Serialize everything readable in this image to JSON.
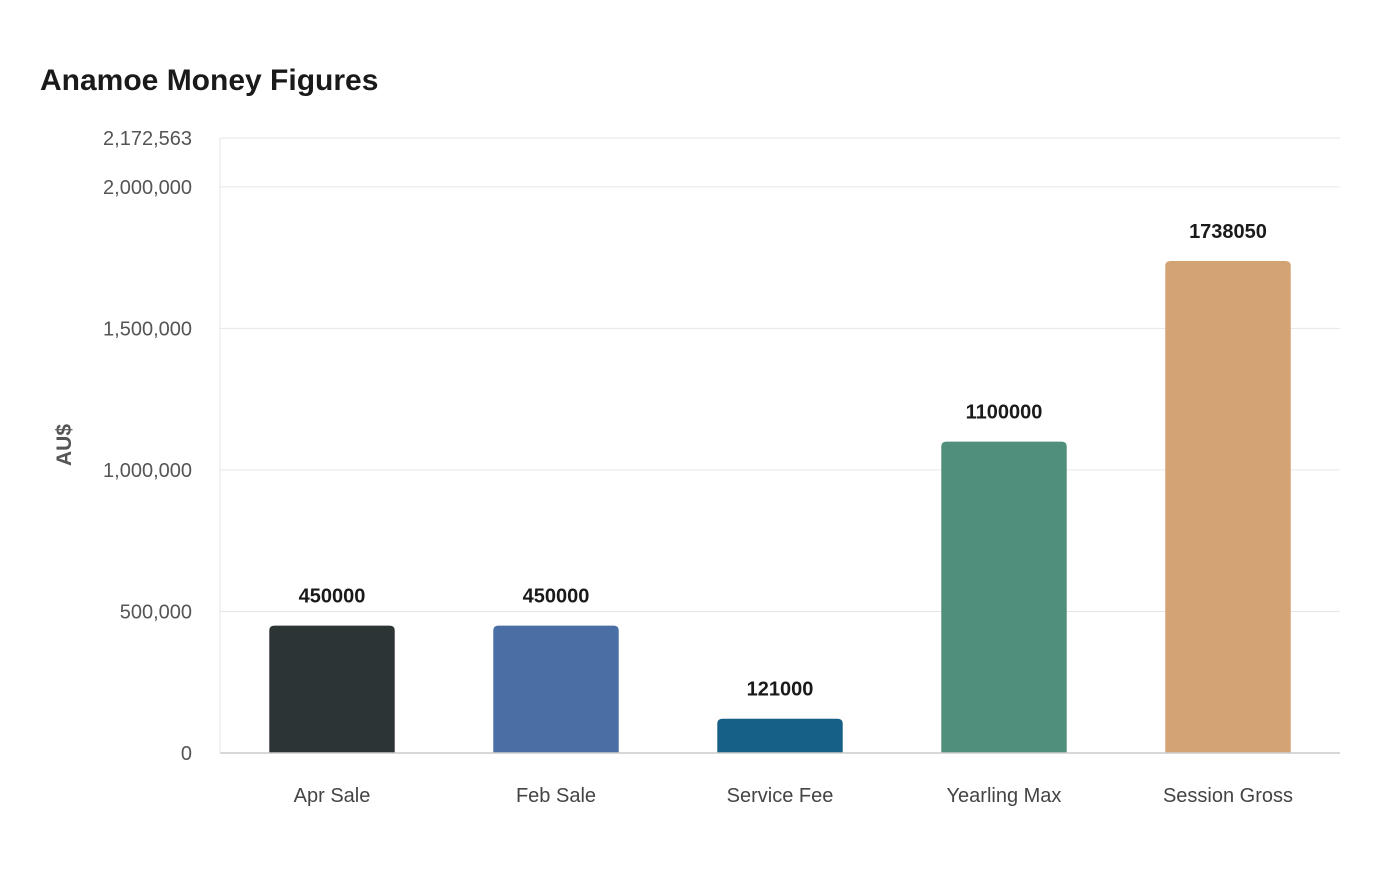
{
  "chart_data": {
    "type": "bar",
    "title": "Anamoe Money Figures",
    "xlabel": "",
    "ylabel": "AU$",
    "categories": [
      "Apr Sale",
      "Feb Sale",
      "Service Fee",
      "Yearling Max",
      "Session Gross"
    ],
    "values": [
      450000,
      450000,
      121000,
      1100000,
      1738050
    ],
    "data_labels": [
      "450000",
      "450000",
      "121000",
      "1100000",
      "1738050"
    ],
    "colors": [
      "#2d3436",
      "#4a6fa5",
      "#166088",
      "#4f8f7b",
      "#d4a373"
    ],
    "ylim": [
      0,
      2172563
    ],
    "yticks": [
      0,
      500000,
      1000000,
      1500000,
      2000000,
      2172563
    ],
    "ytick_labels": [
      "0",
      "500,000",
      "1,000,000",
      "1,500,000",
      "2,000,000",
      "2,172,563"
    ],
    "grid": true,
    "legend": "none"
  }
}
